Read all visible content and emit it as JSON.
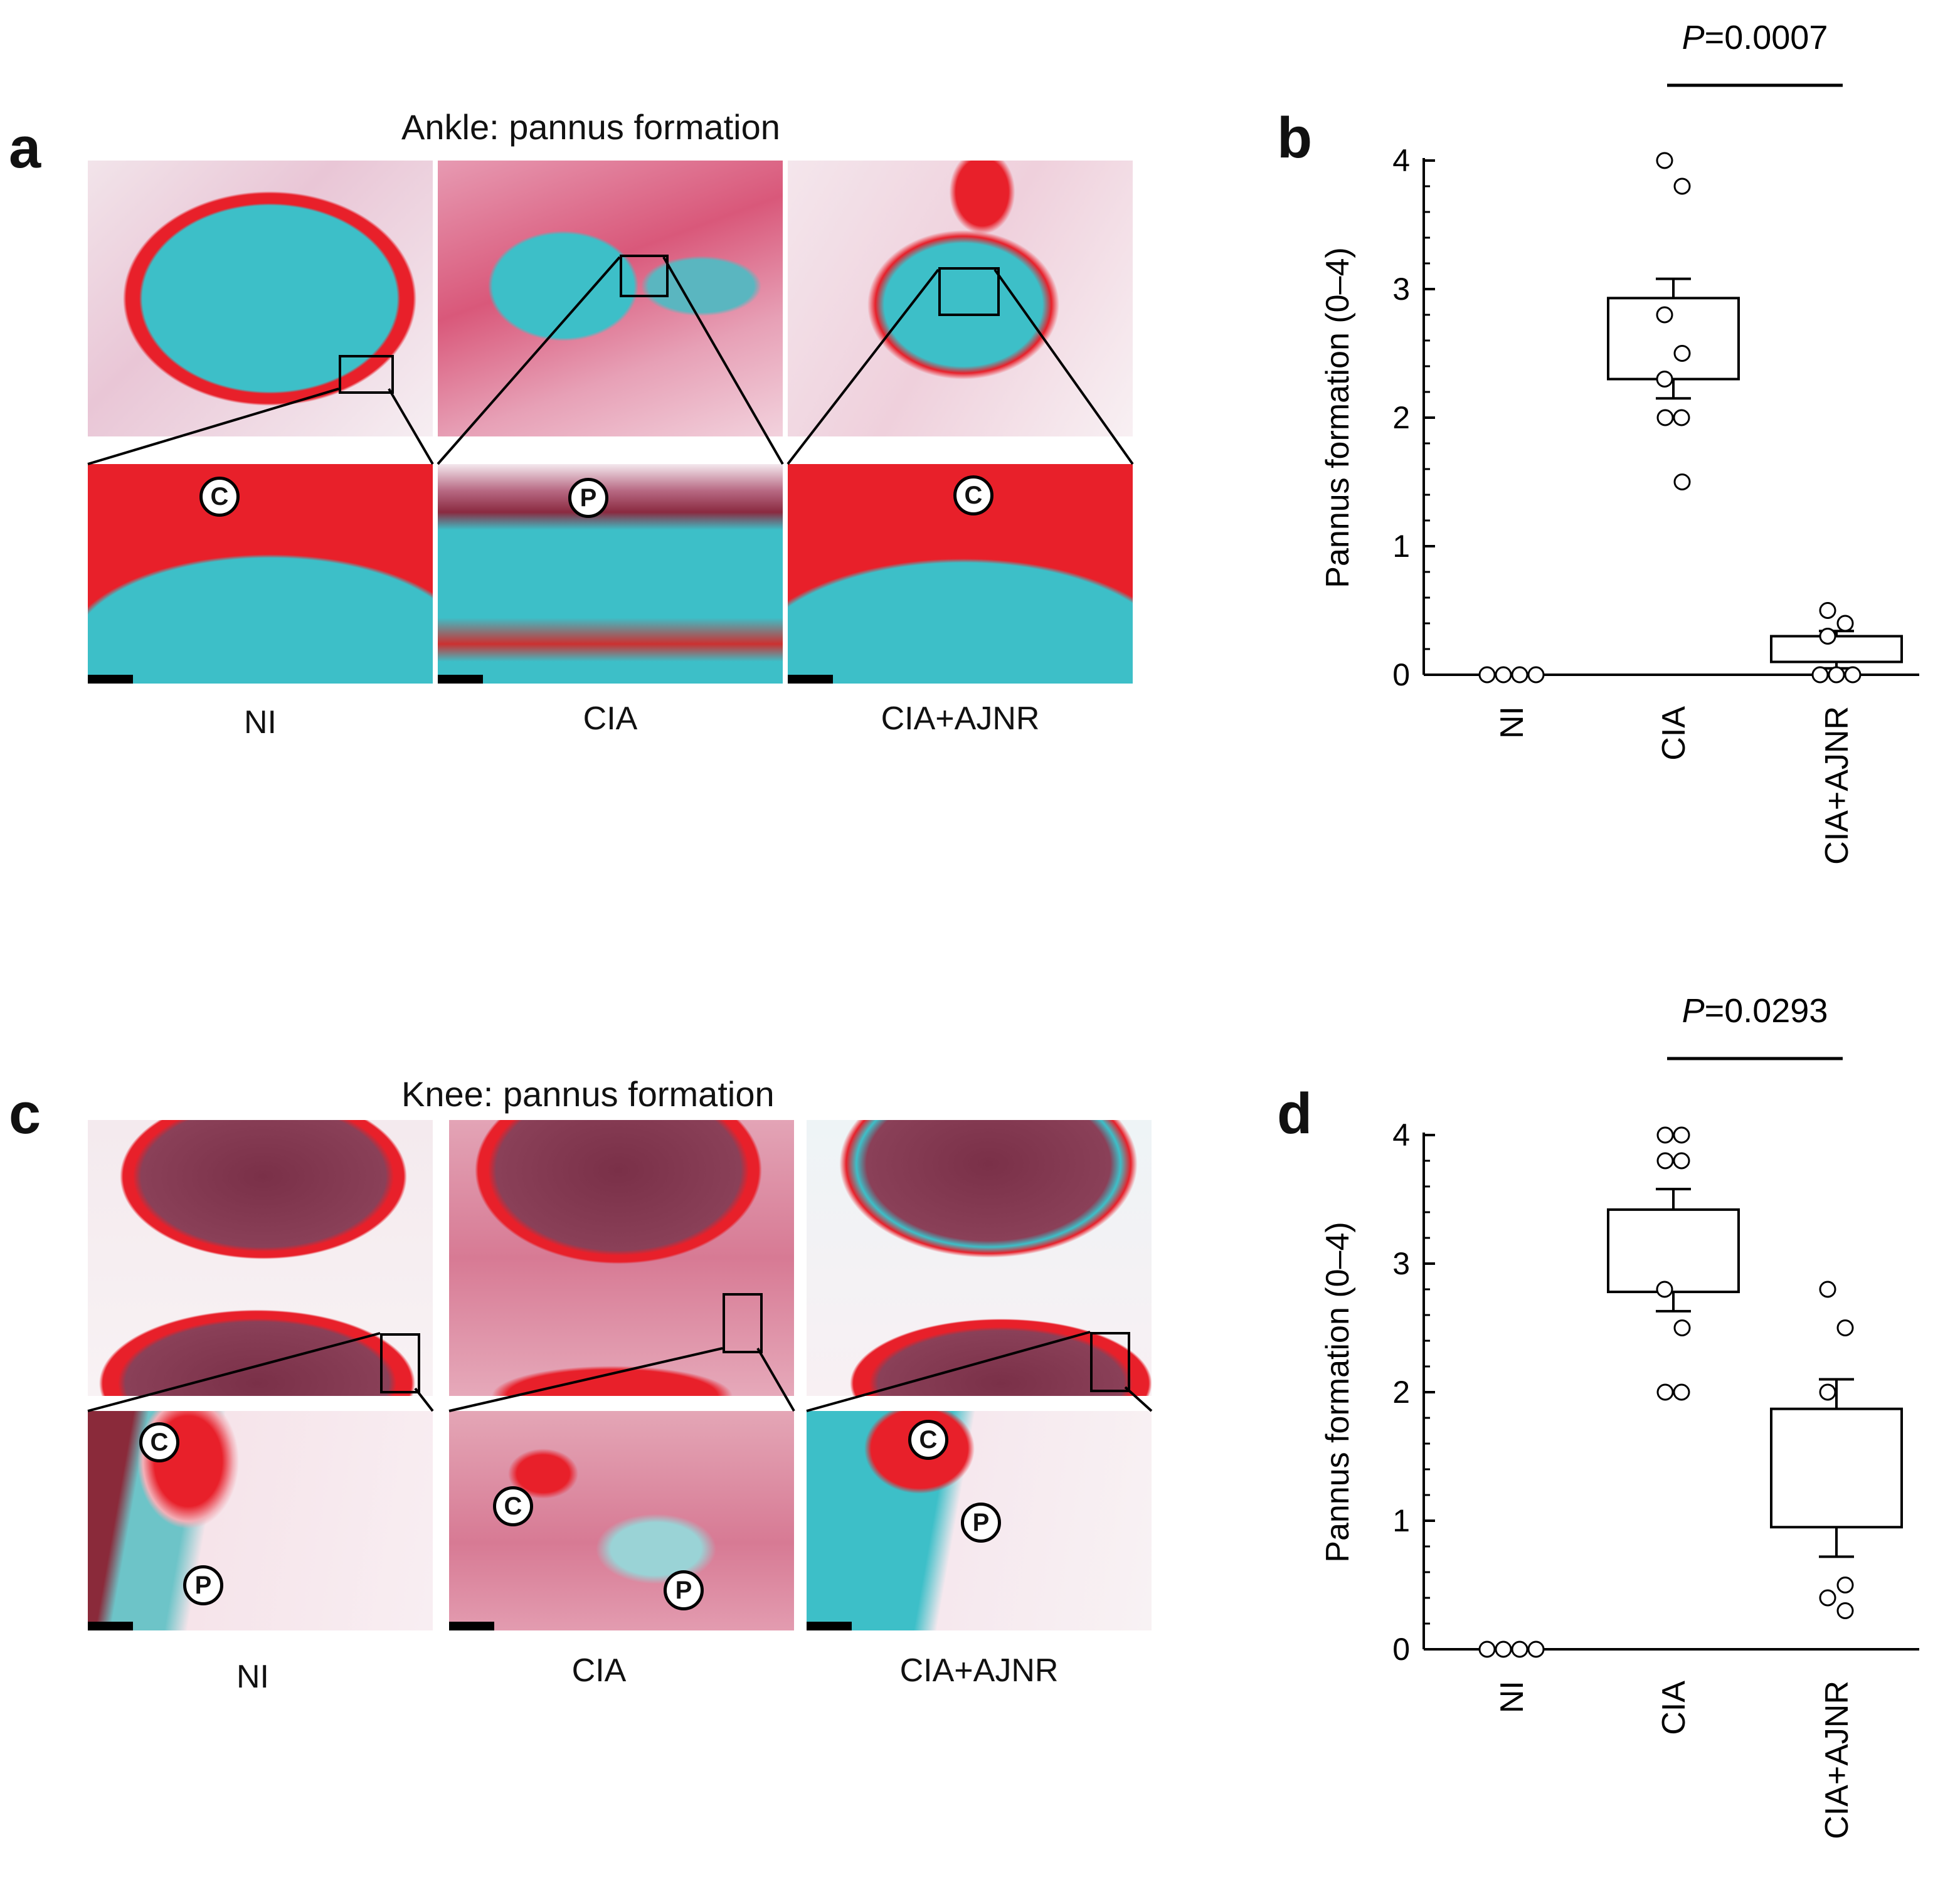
{
  "figure": {
    "panel_a": {
      "letter": "a",
      "title": "Ankle: pannus formation"
    },
    "panel_b": {
      "letter": "b"
    },
    "panel_c": {
      "letter": "c",
      "title": "Knee: pannus formation"
    },
    "panel_d": {
      "letter": "d"
    },
    "conditions": [
      "NI",
      "CIA",
      "CIA+AJNR"
    ],
    "markers": {
      "cartilage": "C",
      "pannus": "P"
    },
    "colors": {
      "safranin_red": "#e8202a",
      "fast_green_cyan": "#3dbfc8",
      "connective_pink": "#d86a8a",
      "marrow": "#6a2a40"
    }
  },
  "chart_data": [
    {
      "id": "b",
      "type": "scatter",
      "subtype": "box_with_points",
      "ylabel": "Pannus formation (0–4)",
      "xlabel": "",
      "categories": [
        "NI",
        "CIA",
        "CIA+AJNR"
      ],
      "ylim": [
        0,
        4
      ],
      "yticks": [
        0,
        1,
        2,
        3,
        4
      ],
      "points": [
        [
          0,
          0,
          0,
          0
        ],
        [
          4.0,
          3.8,
          2.8,
          2.5,
          2.3,
          2.0,
          2.0,
          1.5
        ],
        [
          0.5,
          0.4,
          0.3,
          0.0,
          0.0,
          0.0
        ]
      ],
      "boxes": [
        null,
        {
          "low": 2.3,
          "high": 2.93,
          "err_low": 2.15,
          "err_high": 3.08
        },
        {
          "low": 0.1,
          "high": 0.3,
          "err_low": 0.05,
          "err_high": 0.34
        }
      ],
      "annotation": {
        "label": "P",
        "text": "=0.0007",
        "between": [
          "CIA",
          "CIA+AJNR"
        ]
      }
    },
    {
      "id": "d",
      "type": "scatter",
      "subtype": "box_with_points",
      "ylabel": "Pannus formation (0–4)",
      "xlabel": "",
      "categories": [
        "NI",
        "CIA",
        "CIA+AJNR"
      ],
      "ylim": [
        0,
        4
      ],
      "yticks": [
        0,
        1,
        2,
        3,
        4
      ],
      "points": [
        [
          0,
          0,
          0,
          0
        ],
        [
          4.0,
          4.0,
          3.8,
          3.8,
          2.8,
          2.5,
          2.0,
          2.0
        ],
        [
          2.8,
          2.5,
          2.0,
          0.5,
          0.4,
          0.3
        ]
      ],
      "boxes": [
        null,
        {
          "low": 2.78,
          "high": 3.42,
          "err_low": 2.63,
          "err_high": 3.58
        },
        {
          "low": 0.95,
          "high": 1.87,
          "err_low": 0.72,
          "err_high": 2.1
        }
      ],
      "annotation": {
        "label": "P",
        "text": "=0.0293",
        "between": [
          "CIA",
          "CIA+AJNR"
        ]
      }
    }
  ]
}
